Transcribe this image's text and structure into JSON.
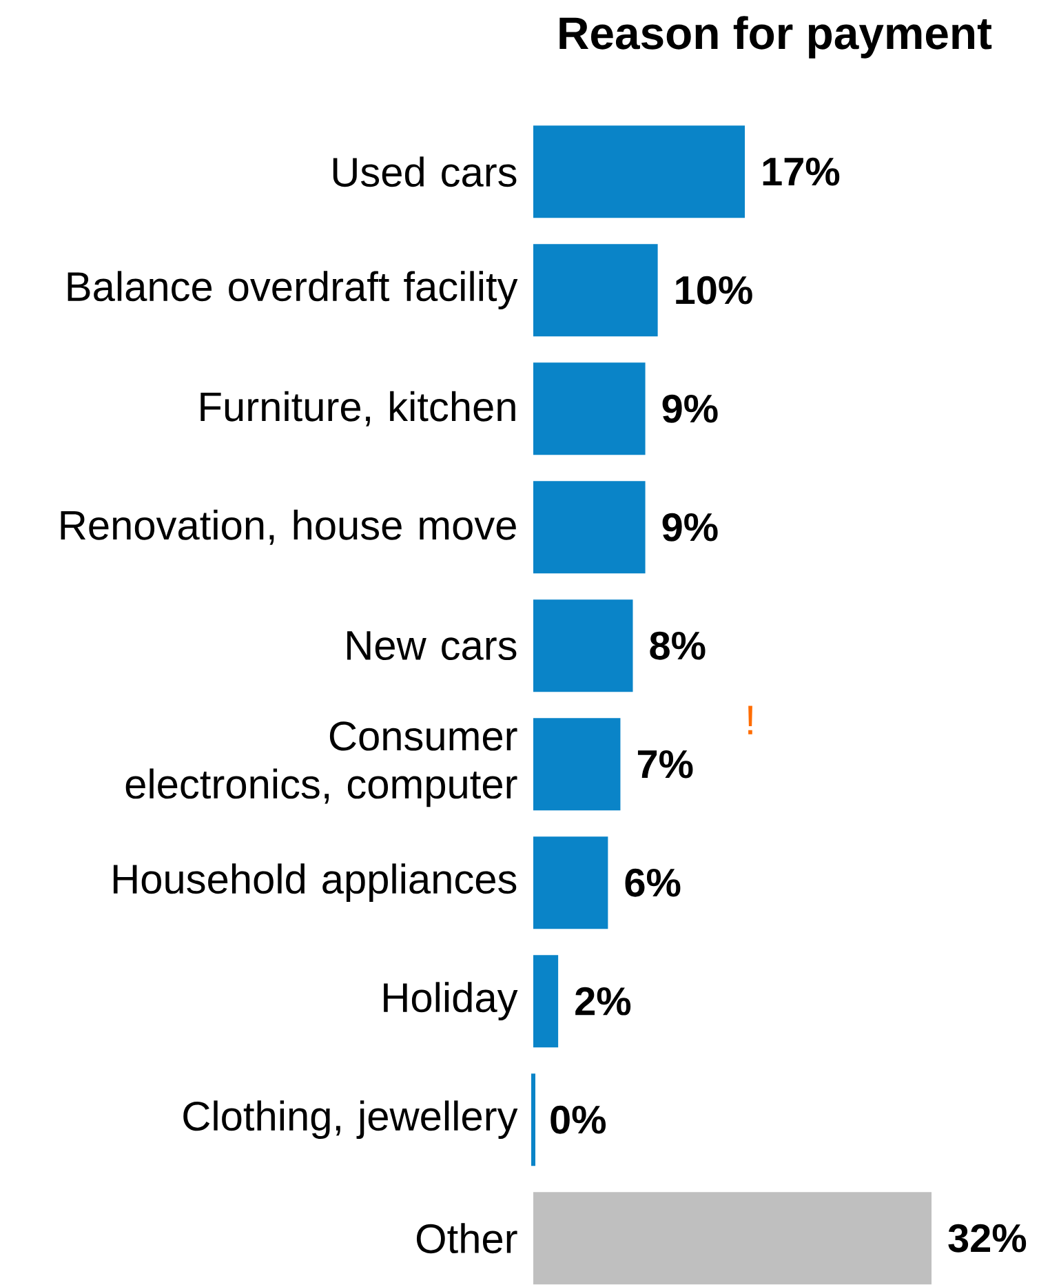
{
  "chart_data": {
    "type": "bar",
    "orientation": "horizontal",
    "title": "Reason for payment",
    "categories": [
      "Used cars",
      "Balance overdraft facility",
      "Furniture, kitchen",
      "Renovation, house move",
      "New cars",
      "Consumer electronics, computer",
      "Household appliances",
      "Holiday",
      "Clothing, jewellery",
      "Other"
    ],
    "values": [
      17,
      10,
      9,
      9,
      8,
      7,
      6,
      2,
      0,
      32
    ],
    "value_labels": [
      "17%",
      "10%",
      "9%",
      "9%",
      "8%",
      "7%",
      "6%",
      "2%",
      "0%",
      "32%"
    ],
    "colors": [
      "#0a84c8",
      "#0a84c8",
      "#0a84c8",
      "#0a84c8",
      "#0a84c8",
      "#0a84c8",
      "#0a84c8",
      "#0a84c8",
      "#0a84c8",
      "#bfbfbf"
    ],
    "annotations": [
      "!"
    ]
  }
}
